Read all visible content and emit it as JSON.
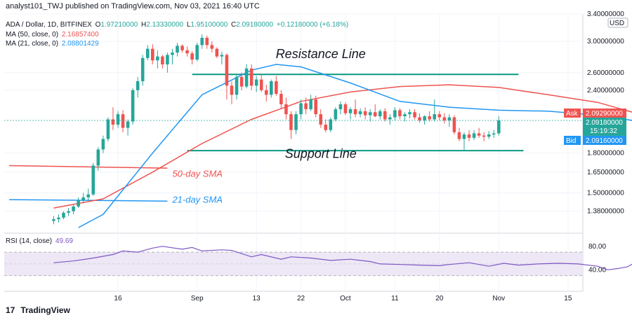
{
  "header": {
    "publish_line": "analyst101_TWJ published on TradingView.com, Nov 03, 2021 16:40 UTC"
  },
  "legend": {
    "symbol": "ADA / Dollar, 1D, BITFINEX",
    "o_label": "O",
    "o_value": "1.97210000",
    "h_label": "H",
    "h_value": "2.13330000",
    "l_label": "L",
    "l_value": "1.95100000",
    "c_label": "C",
    "c_value": "2.09180000",
    "change": "+0.12180000 (+6.18%)",
    "ma50_label": "MA (50, close, 0)",
    "ma50_value": "2.16857400",
    "ma21_label": "MA (21, close, 0)",
    "ma21_value": "2.08801429",
    "rsi_label": "RSI (14, close)",
    "rsi_value": "49.69"
  },
  "currency": "USD",
  "badges": {
    "ask_label": "Ask",
    "ask_price": "2.09290000",
    "last_price": "2.09180000",
    "countdown": "15:19:32",
    "bid_label": "Bid",
    "bid_price": "2.09160000"
  },
  "annotations": {
    "resistance": "Resistance Line",
    "support": "Support Line",
    "sma50": "50-day SMA",
    "sma21": "21-day SMA"
  },
  "footer": {
    "brand": "TradingView",
    "logo_glyph": "17"
  },
  "colors": {
    "up": "#26a69a",
    "down": "#ef5350",
    "ma50": "#ef5350",
    "ma21": "#2196f3",
    "line": "#089981",
    "rsi": "#7e57c2",
    "rsi_band": "#ede7f6"
  },
  "chart_data": {
    "type": "candlestick",
    "y_scale": "log",
    "ylim": [
      1.26,
      3.4
    ],
    "y_ticks": [
      3.4,
      3.0,
      2.6,
      2.4,
      1.8,
      1.65,
      1.5,
      1.38
    ],
    "y_tick_labels": [
      "3.40000000",
      "3.00000000",
      "2.60000000",
      "2.40000000",
      "1.80000000",
      "1.65000000",
      "1.50000000",
      "1.38000000"
    ],
    "x_ticks": [
      {
        "date": "2021-08-16",
        "label": "16"
      },
      {
        "date": "2021-09-01",
        "label": "Sep"
      },
      {
        "date": "2021-09-13",
        "label": "13"
      },
      {
        "date": "2021-09-22",
        "label": "22"
      },
      {
        "date": "2021-10-01",
        "label": "Oct"
      },
      {
        "date": "2021-10-11",
        "label": "11"
      },
      {
        "date": "2021-10-20",
        "label": "20"
      },
      {
        "date": "2021-11-01",
        "label": "Nov"
      },
      {
        "date": "2021-11-15",
        "label": "15"
      }
    ],
    "candles_start": "2021-08-03",
    "candles_end": "2021-11-03",
    "candles": [
      [
        1.32,
        1.35,
        1.3,
        1.33
      ],
      [
        1.33,
        1.36,
        1.31,
        1.34
      ],
      [
        1.34,
        1.38,
        1.33,
        1.37
      ],
      [
        1.37,
        1.4,
        1.35,
        1.38
      ],
      [
        1.38,
        1.42,
        1.36,
        1.41
      ],
      [
        1.41,
        1.47,
        1.4,
        1.45
      ],
      [
        1.45,
        1.5,
        1.43,
        1.47
      ],
      [
        1.47,
        1.53,
        1.45,
        1.49
      ],
      [
        1.49,
        1.72,
        1.48,
        1.7
      ],
      [
        1.7,
        1.85,
        1.66,
        1.83
      ],
      [
        1.83,
        1.95,
        1.8,
        1.92
      ],
      [
        1.92,
        2.12,
        1.9,
        2.1
      ],
      [
        2.1,
        2.22,
        2.0,
        2.05
      ],
      [
        2.05,
        2.18,
        2.02,
        2.15
      ],
      [
        2.15,
        2.19,
        1.98,
        2.02
      ],
      [
        2.02,
        2.1,
        1.95,
        2.08
      ],
      [
        2.08,
        2.42,
        2.05,
        2.4
      ],
      [
        2.4,
        2.55,
        2.32,
        2.5
      ],
      [
        2.5,
        2.82,
        2.45,
        2.78
      ],
      [
        2.78,
        2.95,
        2.75,
        2.9
      ],
      [
        2.9,
        2.96,
        2.7,
        2.75
      ],
      [
        2.75,
        2.88,
        2.65,
        2.8
      ],
      [
        2.8,
        2.82,
        2.65,
        2.7
      ],
      [
        2.7,
        2.85,
        2.6,
        2.82
      ],
      [
        2.82,
        2.9,
        2.7,
        2.85
      ],
      [
        2.85,
        2.98,
        2.8,
        2.94
      ],
      [
        2.94,
        2.96,
        2.85,
        2.88
      ],
      [
        2.88,
        2.93,
        2.8,
        2.84
      ],
      [
        2.84,
        2.87,
        2.7,
        2.76
      ],
      [
        2.76,
        2.98,
        2.74,
        2.95
      ],
      [
        2.95,
        3.1,
        2.9,
        3.05
      ],
      [
        3.05,
        3.08,
        2.9,
        2.95
      ],
      [
        2.95,
        3.0,
        2.85,
        2.9
      ],
      [
        2.9,
        2.92,
        2.78,
        2.8
      ],
      [
        2.8,
        2.86,
        2.7,
        2.82
      ],
      [
        2.82,
        2.84,
        2.3,
        2.45
      ],
      [
        2.45,
        2.5,
        2.25,
        2.35
      ],
      [
        2.35,
        2.58,
        2.3,
        2.55
      ],
      [
        2.55,
        2.6,
        2.4,
        2.44
      ],
      [
        2.44,
        2.7,
        2.42,
        2.65
      ],
      [
        2.65,
        2.7,
        2.4,
        2.45
      ],
      [
        2.45,
        2.56,
        2.38,
        2.52
      ],
      [
        2.52,
        2.58,
        2.38,
        2.4
      ],
      [
        2.4,
        2.46,
        2.28,
        2.35
      ],
      [
        2.35,
        2.52,
        2.32,
        2.5
      ],
      [
        2.5,
        2.56,
        2.34,
        2.36
      ],
      [
        2.36,
        2.4,
        2.2,
        2.25
      ],
      [
        2.25,
        2.32,
        2.1,
        2.15
      ],
      [
        2.15,
        2.18,
        1.92,
        2.0
      ],
      [
        2.0,
        2.18,
        1.96,
        2.15
      ],
      [
        2.15,
        2.3,
        2.1,
        2.26
      ],
      [
        2.26,
        2.32,
        2.15,
        2.2
      ],
      [
        2.2,
        2.35,
        2.18,
        2.3
      ],
      [
        2.3,
        2.34,
        2.12,
        2.15
      ],
      [
        2.15,
        2.2,
        2.02,
        2.05
      ],
      [
        2.05,
        2.1,
        1.98,
        2.0
      ],
      [
        2.0,
        2.12,
        1.98,
        2.1
      ],
      [
        2.1,
        2.22,
        2.08,
        2.2
      ],
      [
        2.2,
        2.28,
        2.15,
        2.25
      ],
      [
        2.25,
        2.27,
        2.14,
        2.16
      ],
      [
        2.16,
        2.22,
        2.1,
        2.2
      ],
      [
        2.2,
        2.3,
        2.12,
        2.15
      ],
      [
        2.15,
        2.21,
        2.12,
        2.18
      ],
      [
        2.18,
        2.22,
        2.1,
        2.14
      ],
      [
        2.14,
        2.2,
        2.08,
        2.17
      ],
      [
        2.17,
        2.25,
        2.12,
        2.13
      ],
      [
        2.13,
        2.2,
        2.1,
        2.18
      ],
      [
        2.18,
        2.21,
        2.08,
        2.1
      ],
      [
        2.1,
        2.15,
        2.05,
        2.12
      ],
      [
        2.12,
        2.22,
        2.09,
        2.19
      ],
      [
        2.19,
        2.21,
        2.1,
        2.13
      ],
      [
        2.13,
        2.17,
        2.08,
        2.15
      ],
      [
        2.15,
        2.2,
        2.11,
        2.17
      ],
      [
        2.17,
        2.2,
        2.1,
        2.12
      ],
      [
        2.12,
        2.16,
        2.07,
        2.09
      ],
      [
        2.09,
        2.14,
        2.05,
        2.13
      ],
      [
        2.13,
        2.18,
        2.08,
        2.1
      ],
      [
        2.1,
        2.3,
        2.08,
        2.15
      ],
      [
        2.15,
        2.18,
        2.09,
        2.12
      ],
      [
        2.12,
        2.16,
        2.06,
        2.09
      ],
      [
        2.09,
        2.15,
        2.03,
        2.12
      ],
      [
        2.12,
        2.14,
        1.96,
        1.98
      ],
      [
        1.98,
        2.02,
        1.9,
        1.92
      ],
      [
        1.92,
        1.98,
        1.82,
        1.96
      ],
      [
        1.96,
        2.0,
        1.9,
        1.93
      ],
      [
        1.93,
        2.0,
        1.91,
        1.97
      ],
      [
        1.97,
        2.02,
        1.93,
        1.95
      ],
      [
        1.95,
        1.98,
        1.9,
        1.94
      ],
      [
        1.94,
        1.99,
        1.92,
        1.96
      ],
      [
        1.96,
        2.0,
        1.93,
        1.97
      ],
      [
        1.97,
        2.13,
        1.95,
        2.09
      ]
    ],
    "ma50": [
      [
        0,
        1.4
      ],
      [
        10,
        1.46
      ],
      [
        20,
        1.65
      ],
      [
        30,
        1.88
      ],
      [
        40,
        2.1
      ],
      [
        50,
        2.28
      ],
      [
        60,
        2.38
      ],
      [
        70,
        2.44
      ],
      [
        80,
        2.46
      ],
      [
        90,
        2.43
      ],
      [
        100,
        2.35
      ],
      [
        110,
        2.27
      ],
      [
        117,
        2.17
      ]
    ],
    "ma21": [
      [
        5,
        1.28
      ],
      [
        10,
        1.36
      ],
      [
        20,
        1.8
      ],
      [
        30,
        2.35
      ],
      [
        40,
        2.63
      ],
      [
        45,
        2.7
      ],
      [
        50,
        2.67
      ],
      [
        60,
        2.48
      ],
      [
        70,
        2.28
      ],
      [
        80,
        2.22
      ],
      [
        90,
        2.19
      ],
      [
        100,
        2.18
      ],
      [
        110,
        2.14
      ],
      [
        117,
        2.09
      ]
    ],
    "resistance_line": {
      "from": "2021-08-31",
      "to": "2021-11-05",
      "value": 2.58
    },
    "support_line": {
      "from": "2021-08-30",
      "to": "2021-11-06",
      "value": 1.82
    },
    "old_ma50_segment": {
      "from": "2021-07-25",
      "to": "2021-08-26",
      "values": [
        1.7,
        1.68
      ]
    },
    "old_ma21_segment": {
      "from": "2021-07-25",
      "to": "2021-08-26",
      "values": [
        1.455,
        1.445
      ]
    },
    "rsi": {
      "ylim": [
        20,
        100
      ],
      "y_ticks": [
        80,
        40
      ],
      "y_tick_labels": [
        "80.00",
        "40.00"
      ],
      "band": [
        30,
        70
      ],
      "values": [
        [
          0,
          52
        ],
        [
          4,
          55
        ],
        [
          8,
          60
        ],
        [
          12,
          66
        ],
        [
          14,
          72
        ],
        [
          17,
          70
        ],
        [
          20,
          77
        ],
        [
          22,
          80
        ],
        [
          26,
          75
        ],
        [
          28,
          78
        ],
        [
          30,
          72
        ],
        [
          34,
          74
        ],
        [
          36,
          73
        ],
        [
          40,
          62
        ],
        [
          42,
          66
        ],
        [
          46,
          58
        ],
        [
          48,
          62
        ],
        [
          52,
          60
        ],
        [
          56,
          56
        ],
        [
          60,
          58
        ],
        [
          64,
          54
        ],
        [
          66,
          50
        ],
        [
          70,
          49
        ],
        [
          74,
          48
        ],
        [
          78,
          47
        ],
        [
          80,
          49
        ],
        [
          84,
          52
        ],
        [
          88,
          46
        ],
        [
          91,
          51
        ],
        [
          94,
          48
        ],
        [
          98,
          50
        ],
        [
          102,
          51
        ],
        [
          106,
          50
        ],
        [
          110,
          46
        ],
        [
          112,
          40
        ],
        [
          114,
          42
        ],
        [
          116,
          45
        ],
        [
          117,
          49.69
        ]
      ]
    }
  }
}
